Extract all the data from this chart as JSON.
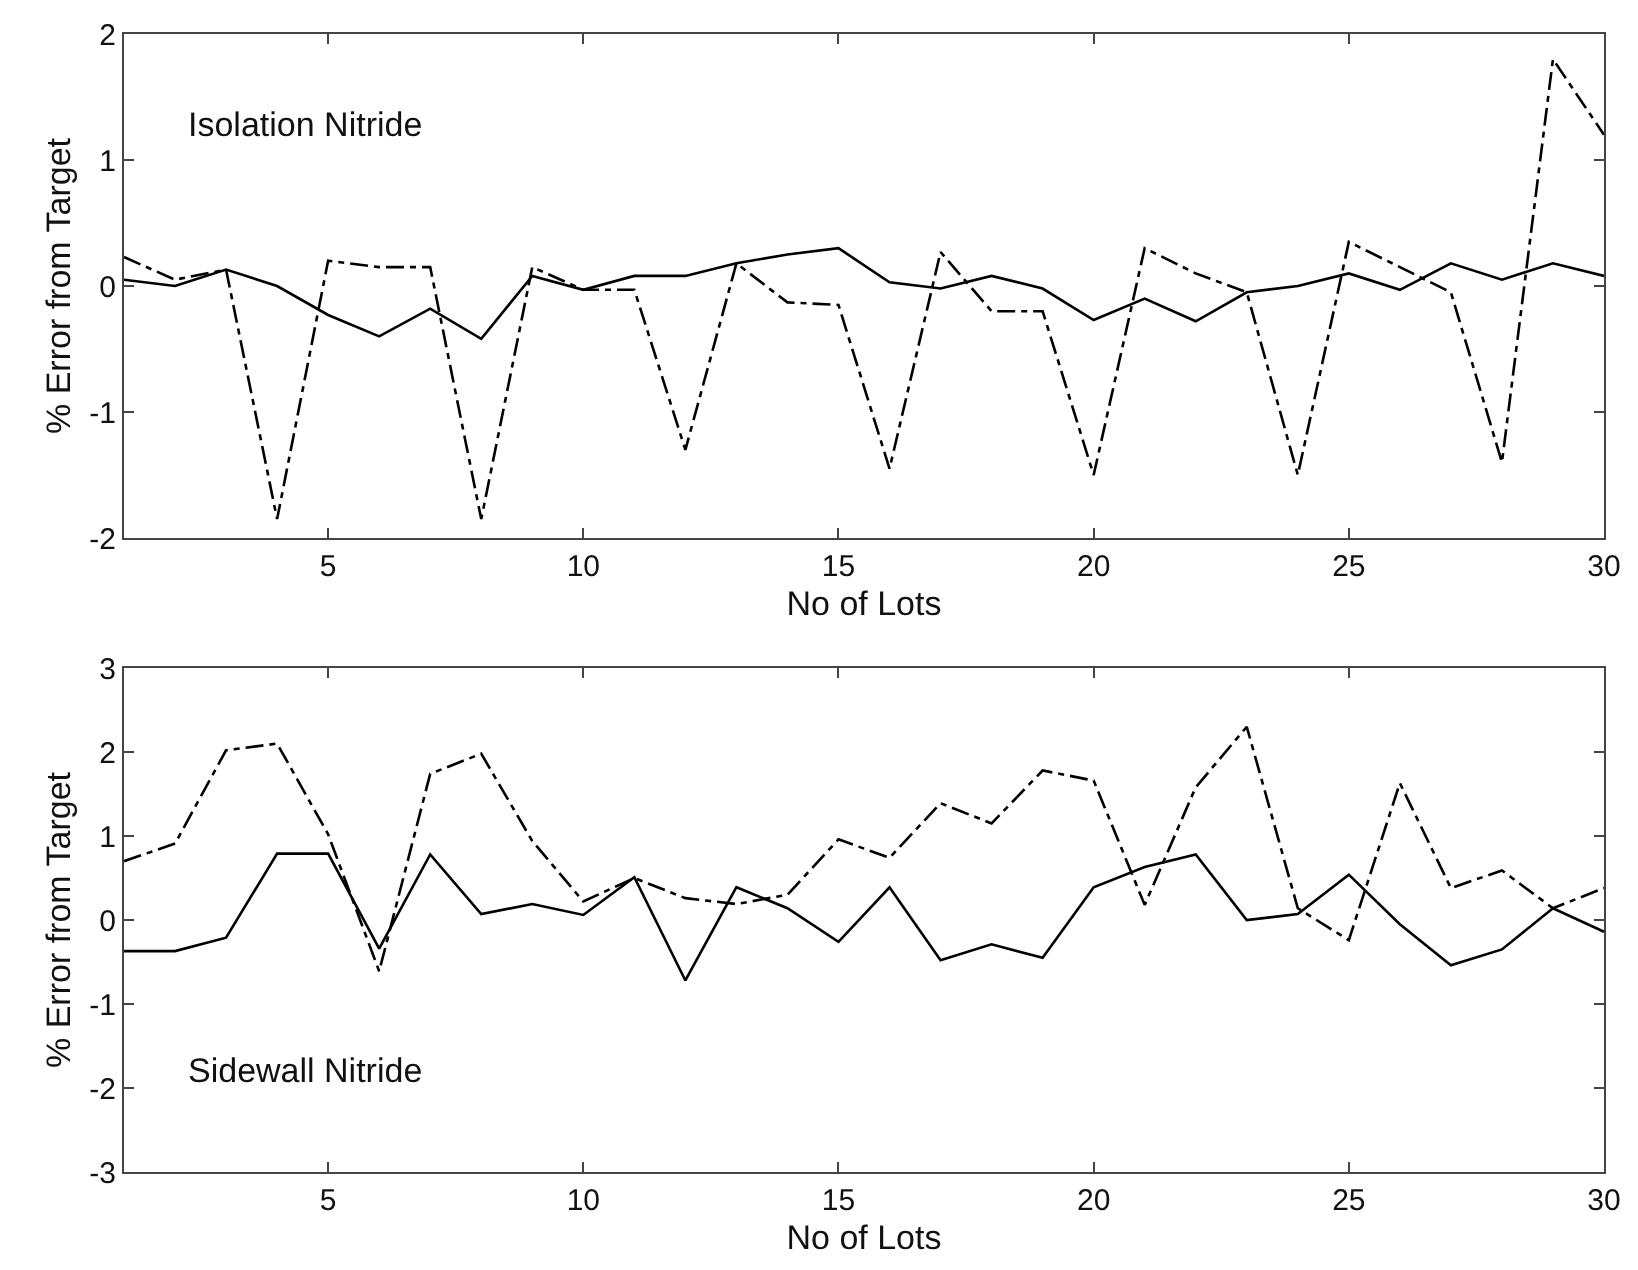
{
  "chart_data": [
    {
      "type": "line",
      "xlabel": "No of Lots",
      "ylabel": "% Error from Target",
      "annotations": [
        "Isolation Nitride"
      ],
      "x": [
        1,
        2,
        3,
        4,
        5,
        6,
        7,
        8,
        9,
        10,
        11,
        12,
        13,
        14,
        15,
        16,
        17,
        18,
        19,
        20,
        21,
        22,
        23,
        24,
        25,
        26,
        27,
        28,
        29,
        30
      ],
      "series": [
        {
          "color": "#000000",
          "line_style": "solid",
          "values": [
            0.05,
            0.0,
            0.13,
            0.0,
            -0.23,
            -0.4,
            -0.18,
            -0.42,
            0.08,
            -0.03,
            0.08,
            0.08,
            0.18,
            0.25,
            0.3,
            0.03,
            -0.02,
            0.08,
            -0.02,
            -0.27,
            -0.1,
            -0.28,
            -0.05,
            0.0,
            0.1,
            -0.03,
            0.18,
            0.05,
            0.18,
            0.08
          ]
        },
        {
          "color": "#000000",
          "line_style": "dashed",
          "values": [
            0.23,
            0.05,
            0.13,
            -1.85,
            0.2,
            0.15,
            0.15,
            -1.85,
            0.15,
            -0.03,
            -0.03,
            -1.3,
            0.18,
            -0.13,
            -0.15,
            -1.45,
            0.27,
            -0.2,
            -0.2,
            -1.5,
            0.3,
            0.1,
            -0.05,
            -1.5,
            0.35,
            0.15,
            -0.05,
            -1.4,
            1.8,
            1.2
          ]
        }
      ],
      "xlim": [
        1,
        30
      ],
      "xticks": [
        5,
        10,
        15,
        20,
        25,
        30
      ],
      "ylim": [
        -2,
        2
      ],
      "yticks": [
        -2,
        -1,
        0,
        1,
        2
      ],
      "grid": false
    },
    {
      "type": "line",
      "xlabel": "No of Lots",
      "ylabel": "% Error from Target",
      "annotations": [
        "Sidewall Nitride"
      ],
      "x": [
        1,
        2,
        3,
        4,
        5,
        6,
        7,
        8,
        9,
        10,
        11,
        12,
        13,
        14,
        15,
        16,
        17,
        18,
        19,
        20,
        21,
        22,
        23,
        24,
        25,
        26,
        27,
        28,
        29,
        30
      ],
      "series": [
        {
          "color": "#000000",
          "line_style": "solid",
          "values": [
            -0.37,
            -0.37,
            -0.21,
            0.79,
            0.79,
            -0.34,
            0.78,
            0.07,
            0.19,
            0.06,
            0.51,
            -0.72,
            0.39,
            0.14,
            -0.26,
            0.39,
            -0.48,
            -0.29,
            -0.45,
            0.39,
            0.63,
            0.78,
            0.0,
            0.07,
            0.54,
            -0.05,
            -0.54,
            -0.35,
            0.14,
            -0.14
          ]
        },
        {
          "color": "#000000",
          "line_style": "dashed",
          "values": [
            0.7,
            0.91,
            2.02,
            2.1,
            1.02,
            -0.61,
            1.74,
            1.98,
            0.94,
            0.22,
            0.5,
            0.26,
            0.19,
            0.3,
            0.96,
            0.74,
            1.39,
            1.15,
            1.78,
            1.66,
            0.18,
            1.58,
            2.3,
            0.14,
            -0.24,
            1.63,
            0.38,
            0.59,
            0.14,
            0.38
          ]
        }
      ],
      "xlim": [
        1,
        30
      ],
      "xticks": [
        5,
        10,
        15,
        20,
        25,
        30
      ],
      "ylim": [
        -3,
        3
      ],
      "yticks": [
        -3,
        -2,
        -1,
        0,
        1,
        2,
        3
      ],
      "grid": false
    }
  ]
}
